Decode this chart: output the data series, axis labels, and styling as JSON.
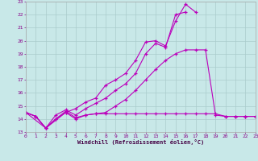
{
  "xlabel": "Windchill (Refroidissement éolien,°C)",
  "bg_color": "#c8e8e8",
  "grid_color": "#aacccc",
  "line_color": "#bb00bb",
  "xmin": 0,
  "xmax": 23,
  "ymin": 13,
  "ymax": 23,
  "series1_x": [
    0,
    1,
    2,
    3,
    4,
    5,
    6,
    7,
    8,
    9,
    10,
    11,
    12,
    13,
    14,
    15,
    16,
    17,
    18,
    19,
    20,
    21,
    22,
    23
  ],
  "series1_y": [
    14.5,
    14.2,
    13.3,
    14.0,
    14.6,
    14.1,
    14.3,
    14.4,
    14.4,
    14.4,
    14.4,
    14.4,
    14.4,
    14.4,
    14.4,
    14.4,
    14.4,
    14.4,
    14.4,
    14.4,
    14.2,
    14.2,
    14.2,
    14.2
  ],
  "series2_x": [
    0,
    1,
    2,
    3,
    4,
    5,
    6,
    7,
    8,
    9,
    10,
    11,
    12,
    13,
    14,
    15,
    16
  ],
  "series2_y": [
    14.5,
    14.2,
    13.3,
    14.3,
    14.7,
    14.3,
    14.8,
    15.2,
    15.6,
    16.2,
    16.7,
    17.5,
    19.0,
    19.8,
    19.5,
    22.0,
    22.2
  ],
  "series3_x": [
    0,
    1,
    2,
    3,
    4,
    5,
    6,
    7,
    8,
    9,
    10,
    11,
    12,
    13,
    14,
    15,
    16,
    17
  ],
  "series3_y": [
    14.5,
    14.2,
    13.3,
    14.0,
    14.5,
    14.8,
    15.3,
    15.6,
    16.6,
    17.0,
    17.5,
    18.5,
    19.9,
    20.0,
    19.6,
    21.5,
    22.8,
    22.2
  ],
  "series4_x": [
    0,
    2,
    4,
    5,
    6,
    7,
    8,
    9,
    10,
    11,
    12,
    13,
    14,
    15,
    16,
    17,
    18,
    19,
    20,
    21,
    22,
    23
  ],
  "series4_y": [
    14.5,
    13.3,
    14.5,
    14.0,
    14.3,
    14.4,
    14.5,
    15.0,
    15.5,
    16.2,
    17.0,
    17.8,
    18.5,
    19.0,
    19.3,
    19.3,
    19.3,
    14.3,
    14.2,
    14.2,
    14.2,
    14.2
  ]
}
